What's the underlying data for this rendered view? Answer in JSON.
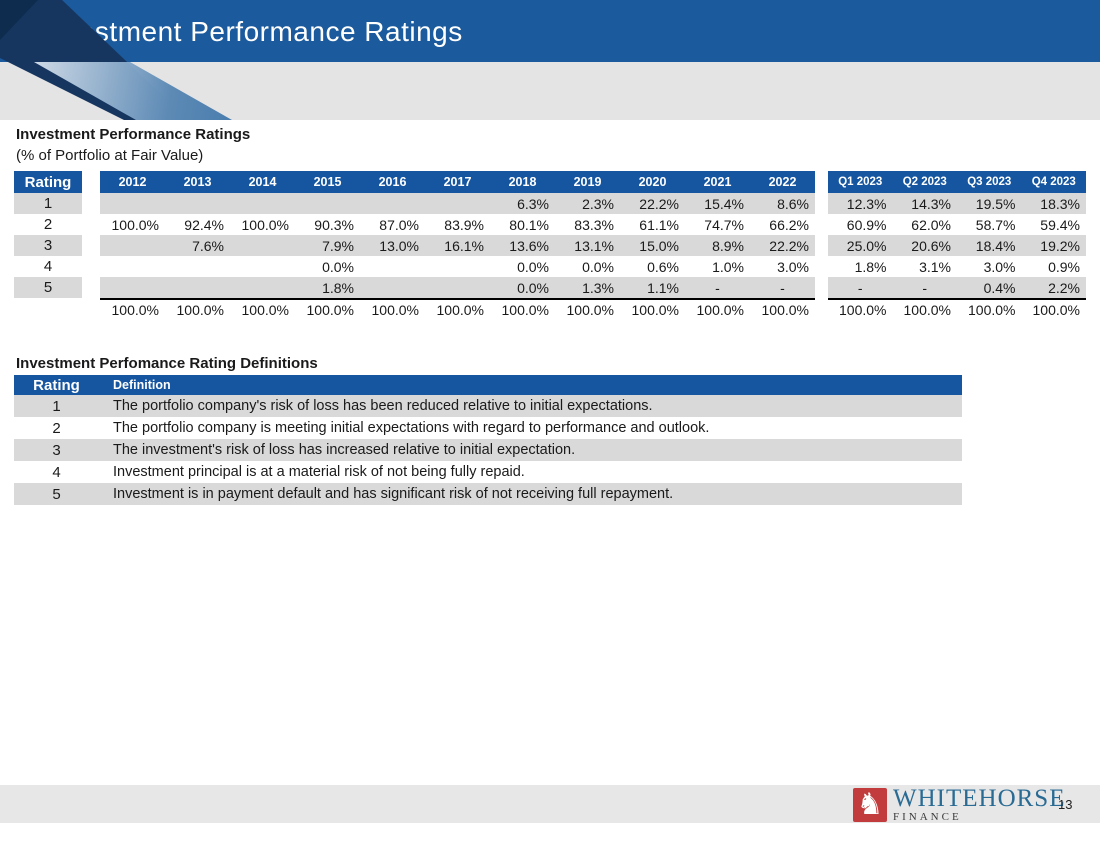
{
  "colors": {
    "banner_blue": "#1b5a9c",
    "table_header_blue": "#1656a0",
    "row_stripe_gray": "#d9d9d9",
    "logo_red": "#c23b3d",
    "logo_blue": "#2a6b94"
  },
  "banner": {
    "title": "Investment Performance Ratings"
  },
  "ratings_table": {
    "title": "Investment Performance Ratings",
    "subtitle": "(% of Portfolio at Fair Value)",
    "rating_header": "Rating",
    "year_columns": [
      "2012",
      "2013",
      "2014",
      "2015",
      "2016",
      "2017",
      "2018",
      "2019",
      "2020",
      "2021",
      "2022"
    ],
    "quarter_columns": [
      "Q1 2023",
      "Q2 2023",
      "Q3 2023",
      "Q4 2023"
    ],
    "rows": [
      {
        "rating": "1",
        "years": [
          "",
          "",
          "",
          "",
          "",
          "",
          "6.3%",
          "2.3%",
          "22.2%",
          "15.4%",
          "8.6%"
        ],
        "quarters": [
          "12.3%",
          "14.3%",
          "19.5%",
          "18.3%"
        ]
      },
      {
        "rating": "2",
        "years": [
          "100.0%",
          "92.4%",
          "100.0%",
          "90.3%",
          "87.0%",
          "83.9%",
          "80.1%",
          "83.3%",
          "61.1%",
          "74.7%",
          "66.2%"
        ],
        "quarters": [
          "60.9%",
          "62.0%",
          "58.7%",
          "59.4%"
        ]
      },
      {
        "rating": "3",
        "years": [
          "",
          "7.6%",
          "",
          "7.9%",
          "13.0%",
          "16.1%",
          "13.6%",
          "13.1%",
          "15.0%",
          "8.9%",
          "22.2%"
        ],
        "quarters": [
          "25.0%",
          "20.6%",
          "18.4%",
          "19.2%"
        ]
      },
      {
        "rating": "4",
        "years": [
          "",
          "",
          "",
          "0.0%",
          "",
          "",
          "0.0%",
          "0.0%",
          "0.6%",
          "1.0%",
          "3.0%"
        ],
        "quarters": [
          "1.8%",
          "3.1%",
          "3.0%",
          "0.9%"
        ]
      },
      {
        "rating": "5",
        "years": [
          "",
          "",
          "",
          "1.8%",
          "",
          "",
          "0.0%",
          "1.3%",
          "1.1%",
          "-",
          "-"
        ],
        "quarters": [
          "-",
          "-",
          "0.4%",
          "2.2%"
        ]
      }
    ],
    "totals_years": [
      "100.0%",
      "100.0%",
      "100.0%",
      "100.0%",
      "100.0%",
      "100.0%",
      "100.0%",
      "100.0%",
      "100.0%",
      "100.0%",
      "100.0%"
    ],
    "totals_quarters": [
      "100.0%",
      "100.0%",
      "100.0%",
      "100.0%"
    ]
  },
  "definitions_table": {
    "title": "Investment Perfomance Rating Definitions",
    "headers": {
      "rating": "Rating",
      "definition": "Definition"
    },
    "rows": [
      {
        "rating": "1",
        "definition": "The portfolio company's risk of loss has been reduced relative to initial expectations."
      },
      {
        "rating": "2",
        "definition": "The portfolio company is meeting initial expectations with regard to performance and outlook."
      },
      {
        "rating": "3",
        "definition": "The investment's risk of loss has increased relative to initial expectation."
      },
      {
        "rating": "4",
        "definition": "Investment principal is at a material risk of not being fully repaid."
      },
      {
        "rating": "5",
        "definition": "Investment is in payment default and has significant risk of not receiving full repayment."
      }
    ]
  },
  "footer": {
    "logo_name": "WHITEHORSE",
    "logo_sub": "FINANCE",
    "logo_icon": "horse-icon",
    "page_number": "13"
  }
}
